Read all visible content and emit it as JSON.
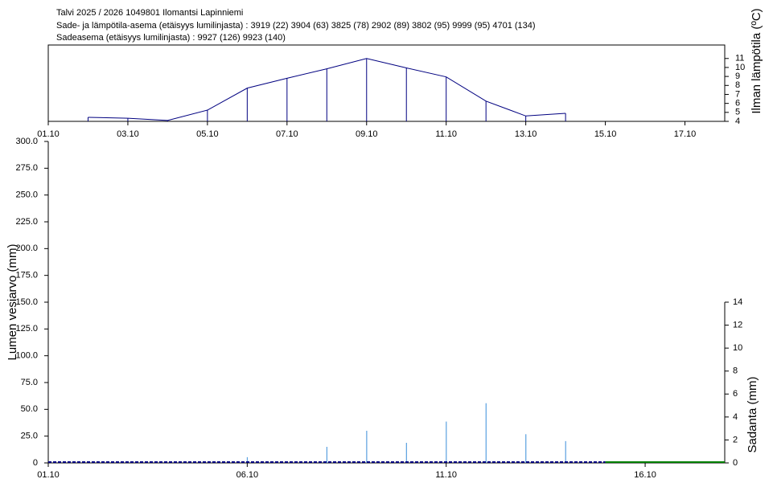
{
  "header": {
    "title": "Talvi 2025 / 2026 1049801 Ilomantsi Lapinniemi",
    "stations": "Sade- ja lämpötila-asema (etäisyys lumilinjasta) :  3919 (22) 3904 (63) 3825 (78) 2902 (89) 3802 (95) 9999 (95) 4701 (134)",
    "precip_stations": "Sadeasema (etäisyys lumilinjasta) :  9927 (126) 9923 (140)"
  },
  "chart_data": [
    {
      "type": "line",
      "y_label": "Ilman lämpötila (ºC)",
      "x": [
        "02.10",
        "03.10",
        "04.10",
        "05.10",
        "06.10",
        "07.10",
        "08.10",
        "09.10",
        "10.10",
        "11.10",
        "12.10",
        "13.10",
        "14.10"
      ],
      "values": [
        4.45,
        4.35,
        4.1,
        5.25,
        7.7,
        8.8,
        9.85,
        11,
        9.95,
        8.95,
        6.25,
        4.6,
        4.9
      ],
      "color": "#000080",
      "stems": true,
      "xlim": [
        "01.10",
        "18.10"
      ],
      "xticks": [
        "01.10",
        "03.10",
        "05.10",
        "07.10",
        "09.10",
        "11.10",
        "13.10",
        "15.10",
        "17.10"
      ],
      "ylim": [
        4,
        12.5
      ],
      "yticks": [
        4,
        5,
        6,
        7,
        8,
        9,
        10,
        11
      ]
    },
    {
      "type": "bar",
      "y_label": "Lumen vesiarvo (mm)",
      "y2_label": "Sadanta (mm)",
      "xlim": [
        "01.10",
        "18.10"
      ],
      "xticks": [
        "01.10",
        "06.10",
        "11.10",
        "16.10"
      ],
      "ylim": [
        0,
        300
      ],
      "yticks": [
        0,
        {
          "value": 25,
          "label": "25.0"
        },
        {
          "value": 50,
          "label": "50.0"
        },
        {
          "value": 75,
          "label": "75.0"
        },
        {
          "value": 100,
          "label": "100.0"
        },
        {
          "value": 125,
          "label": "125.0"
        },
        {
          "value": 150,
          "label": "150.0"
        },
        {
          "value": 175,
          "label": "175.0"
        },
        {
          "value": 200,
          "label": "200.0"
        },
        {
          "value": 225,
          "label": "225.0"
        },
        {
          "value": 250,
          "label": "250.0"
        },
        {
          "value": 275,
          "label": "275.0"
        },
        {
          "value": 300,
          "label": "300.0"
        }
      ],
      "y2lim": [
        0,
        28
      ],
      "y2ticks": [
        0,
        2,
        4,
        6,
        8,
        10,
        12,
        14
      ],
      "precipitation": {
        "color": "#5aa0e0",
        "axis": "y2",
        "x": [
          "06.10",
          "08.10",
          "09.10",
          "10.10",
          "11.10",
          "12.10",
          "13.10",
          "14.10"
        ],
        "values": [
          0.5,
          1.4,
          2.8,
          1.75,
          3.6,
          5.2,
          2.5,
          1.9
        ]
      },
      "snow_water": {
        "color": "#000080",
        "x": [
          "01.10",
          "15.10"
        ],
        "values": [
          0,
          0
        ]
      },
      "snow_water_later": {
        "color": "#008000",
        "x": [
          "15.10",
          "18.10"
        ],
        "values": [
          0,
          0
        ]
      }
    }
  ]
}
